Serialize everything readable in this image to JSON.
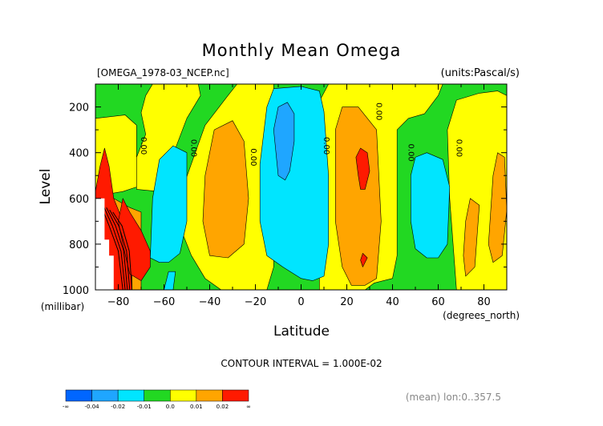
{
  "chart_data": {
    "type": "heatmap",
    "title": "Monthly Mean Omega",
    "file_label": "[OMEGA_1978-03_NCEP.nc]",
    "units_label": "(units:Pascal/s)",
    "xlabel": "Latitude",
    "x_units": "(degrees_north)",
    "ylabel": "Level",
    "y_units": "(millibar)",
    "xlim": [
      -90,
      90
    ],
    "ylim": [
      1000,
      100
    ],
    "x_ticks": [
      -80,
      -60,
      -40,
      -20,
      0,
      20,
      40,
      60,
      80
    ],
    "y_ticks": [
      200,
      400,
      600,
      800,
      1000
    ],
    "contour_interval_label": "CONTOUR INTERVAL = 1.000E-02",
    "footer_label": "(mean) lon:0..357.5",
    "contour_labels": [
      {
        "text": "0.00",
        "lat": -70,
        "level": 370
      },
      {
        "text": "0.00",
        "lat": -48,
        "level": 380
      },
      {
        "text": "0.00",
        "lat": -22,
        "level": 420
      },
      {
        "text": "0.00",
        "lat": 10,
        "level": 370
      },
      {
        "text": "0.00",
        "lat": 33,
        "level": 220
      },
      {
        "text": "0.00",
        "lat": 47,
        "level": 400
      },
      {
        "text": "0.00",
        "lat": 68,
        "level": 380
      }
    ],
    "colorbar": {
      "levels": [
        "-∞",
        "-0.04",
        "-0.02",
        "-0.01",
        "0.0",
        "0.01",
        "0.02",
        "∞"
      ],
      "colors": [
        "#0066ff",
        "#1fa6ff",
        "#00e5ff",
        "#22d822",
        "#ffff00",
        "#ffa500",
        "#ff1a00"
      ]
    },
    "regions": [
      {
        "class": 3,
        "pts": [
          [
            -90,
            1000
          ],
          [
            -90,
            100
          ],
          [
            90,
            100
          ],
          [
            90,
            1000
          ]
        ]
      },
      {
        "class": 4,
        "pts": [
          [
            -90,
            250
          ],
          [
            -77,
            235
          ],
          [
            -72,
            280
          ],
          [
            -72,
            560
          ],
          [
            -62,
            570
          ],
          [
            -58,
            460
          ],
          [
            -50,
            250
          ],
          [
            -44,
            150
          ],
          [
            -45,
            100
          ],
          [
            -65,
            100
          ],
          [
            -68,
            150
          ],
          [
            -70,
            225
          ],
          [
            -68,
            320
          ],
          [
            -72,
            420
          ],
          [
            -72,
            550
          ],
          [
            -78,
            570
          ],
          [
            -84,
            580
          ],
          [
            -90,
            590
          ]
        ]
      },
      {
        "class": 4,
        "pts": [
          [
            -52,
            560
          ],
          [
            -42,
            280
          ],
          [
            -32,
            150
          ],
          [
            -28,
            100
          ],
          [
            -12,
            100
          ],
          [
            -12,
            200
          ],
          [
            -8,
            280
          ],
          [
            -2,
            260
          ],
          [
            4,
            250
          ],
          [
            12,
            100
          ],
          [
            62,
            100
          ],
          [
            60,
            150
          ],
          [
            54,
            230
          ],
          [
            47,
            250
          ],
          [
            42,
            300
          ],
          [
            42,
            850
          ],
          [
            40,
            950
          ],
          [
            32,
            970
          ],
          [
            28,
            1000
          ],
          [
            8,
            1000
          ],
          [
            8,
            800
          ],
          [
            5,
            720
          ],
          [
            0,
            600
          ],
          [
            -12,
            600
          ],
          [
            -12,
            900
          ],
          [
            -15,
            1000
          ],
          [
            -28,
            1000
          ],
          [
            -35,
            1000
          ],
          [
            -42,
            950
          ],
          [
            -48,
            850
          ],
          [
            -52,
            750
          ]
        ]
      },
      {
        "class": 4,
        "pts": [
          [
            68,
            1000
          ],
          [
            65,
            600
          ],
          [
            64,
            300
          ],
          [
            68,
            170
          ],
          [
            78,
            140
          ],
          [
            86,
            130
          ],
          [
            90,
            150
          ],
          [
            90,
            1000
          ]
        ]
      },
      {
        "class": 5,
        "pts": [
          [
            -90,
            560
          ],
          [
            -85,
            550
          ],
          [
            -82,
            600
          ],
          [
            -75,
            640
          ],
          [
            -70,
            660
          ],
          [
            -70,
            1000
          ],
          [
            -90,
            1000
          ]
        ]
      },
      {
        "class": 5,
        "pts": [
          [
            -42,
            500
          ],
          [
            -38,
            300
          ],
          [
            -30,
            260
          ],
          [
            -25,
            350
          ],
          [
            -23,
            600
          ],
          [
            -25,
            800
          ],
          [
            -32,
            860
          ],
          [
            -40,
            850
          ],
          [
            -43,
            700
          ]
        ]
      },
      {
        "class": 5,
        "pts": [
          [
            15,
            300
          ],
          [
            18,
            200
          ],
          [
            25,
            200
          ],
          [
            33,
            300
          ],
          [
            35,
            700
          ],
          [
            33,
            950
          ],
          [
            28,
            980
          ],
          [
            22,
            980
          ],
          [
            18,
            900
          ],
          [
            15,
            700
          ]
        ]
      },
      {
        "class": 5,
        "pts": [
          [
            71,
            850
          ],
          [
            72,
            700
          ],
          [
            74,
            600
          ],
          [
            78,
            630
          ],
          [
            76,
            900
          ],
          [
            72,
            940
          ]
        ]
      },
      {
        "class": 5,
        "pts": [
          [
            82,
            800
          ],
          [
            84,
            500
          ],
          [
            86,
            400
          ],
          [
            89,
            420
          ],
          [
            90,
            650
          ],
          [
            88,
            850
          ],
          [
            84,
            880
          ]
        ]
      },
      {
        "class": 6,
        "pts": [
          [
            -90,
            570
          ],
          [
            -88,
            460
          ],
          [
            -86,
            380
          ],
          [
            -84,
            460
          ],
          [
            -82,
            600
          ],
          [
            -78,
            700
          ],
          [
            -76,
            760
          ],
          [
            -74,
            820
          ],
          [
            -74,
            1000
          ],
          [
            -90,
            1000
          ]
        ]
      },
      {
        "class": 6,
        "pts": [
          [
            -78,
            600
          ],
          [
            -75,
            660
          ],
          [
            -70,
            740
          ],
          [
            -66,
            830
          ],
          [
            -66,
            900
          ],
          [
            -70,
            960
          ],
          [
            -75,
            930
          ],
          [
            -78,
            800
          ],
          [
            -80,
            700
          ]
        ]
      },
      {
        "class": 6,
        "pts": [
          [
            25,
            500
          ],
          [
            24,
            420
          ],
          [
            26,
            380
          ],
          [
            29,
            400
          ],
          [
            30,
            480
          ],
          [
            28,
            560
          ],
          [
            26,
            560
          ]
        ]
      },
      {
        "class": 6,
        "pts": [
          [
            26,
            870
          ],
          [
            27,
            840
          ],
          [
            29,
            860
          ],
          [
            27,
            900
          ]
        ]
      },
      {
        "class": 2,
        "pts": [
          [
            -66,
            860
          ],
          [
            -65,
            600
          ],
          [
            -62,
            430
          ],
          [
            -56,
            370
          ],
          [
            -50,
            400
          ],
          [
            -50,
            700
          ],
          [
            -53,
            840
          ],
          [
            -58,
            880
          ],
          [
            -62,
            880
          ]
        ]
      },
      {
        "class": 2,
        "pts": [
          [
            -60,
            1000
          ],
          [
            -58,
            920
          ],
          [
            -55,
            920
          ],
          [
            -56,
            1000
          ]
        ]
      },
      {
        "class": 2,
        "pts": [
          [
            -18,
            450
          ],
          [
            -15,
            200
          ],
          [
            -12,
            120
          ],
          [
            0,
            110
          ],
          [
            8,
            130
          ],
          [
            10,
            220
          ],
          [
            12,
            500
          ],
          [
            12,
            800
          ],
          [
            10,
            940
          ],
          [
            5,
            960
          ],
          [
            0,
            950
          ],
          [
            -8,
            900
          ],
          [
            -15,
            850
          ],
          [
            -18,
            700
          ]
        ]
      },
      {
        "class": 2,
        "pts": [
          [
            48,
            500
          ],
          [
            50,
            420
          ],
          [
            55,
            400
          ],
          [
            62,
            430
          ],
          [
            65,
            550
          ],
          [
            64,
            800
          ],
          [
            60,
            860
          ],
          [
            55,
            860
          ],
          [
            50,
            820
          ],
          [
            48,
            700
          ]
        ]
      },
      {
        "class": 1,
        "pts": [
          [
            -10,
            500
          ],
          [
            -12,
            300
          ],
          [
            -10,
            200
          ],
          [
            -6,
            180
          ],
          [
            -3,
            230
          ],
          [
            -3,
            350
          ],
          [
            -5,
            480
          ],
          [
            -7,
            520
          ]
        ]
      }
    ],
    "missing_region": [
      [
        -90,
        600
      ],
      [
        -86,
        600
      ],
      [
        -86,
        780
      ],
      [
        -84,
        780
      ],
      [
        -84,
        850
      ],
      [
        -82,
        850
      ],
      [
        -82,
        1000
      ],
      [
        -90,
        1000
      ]
    ]
  }
}
